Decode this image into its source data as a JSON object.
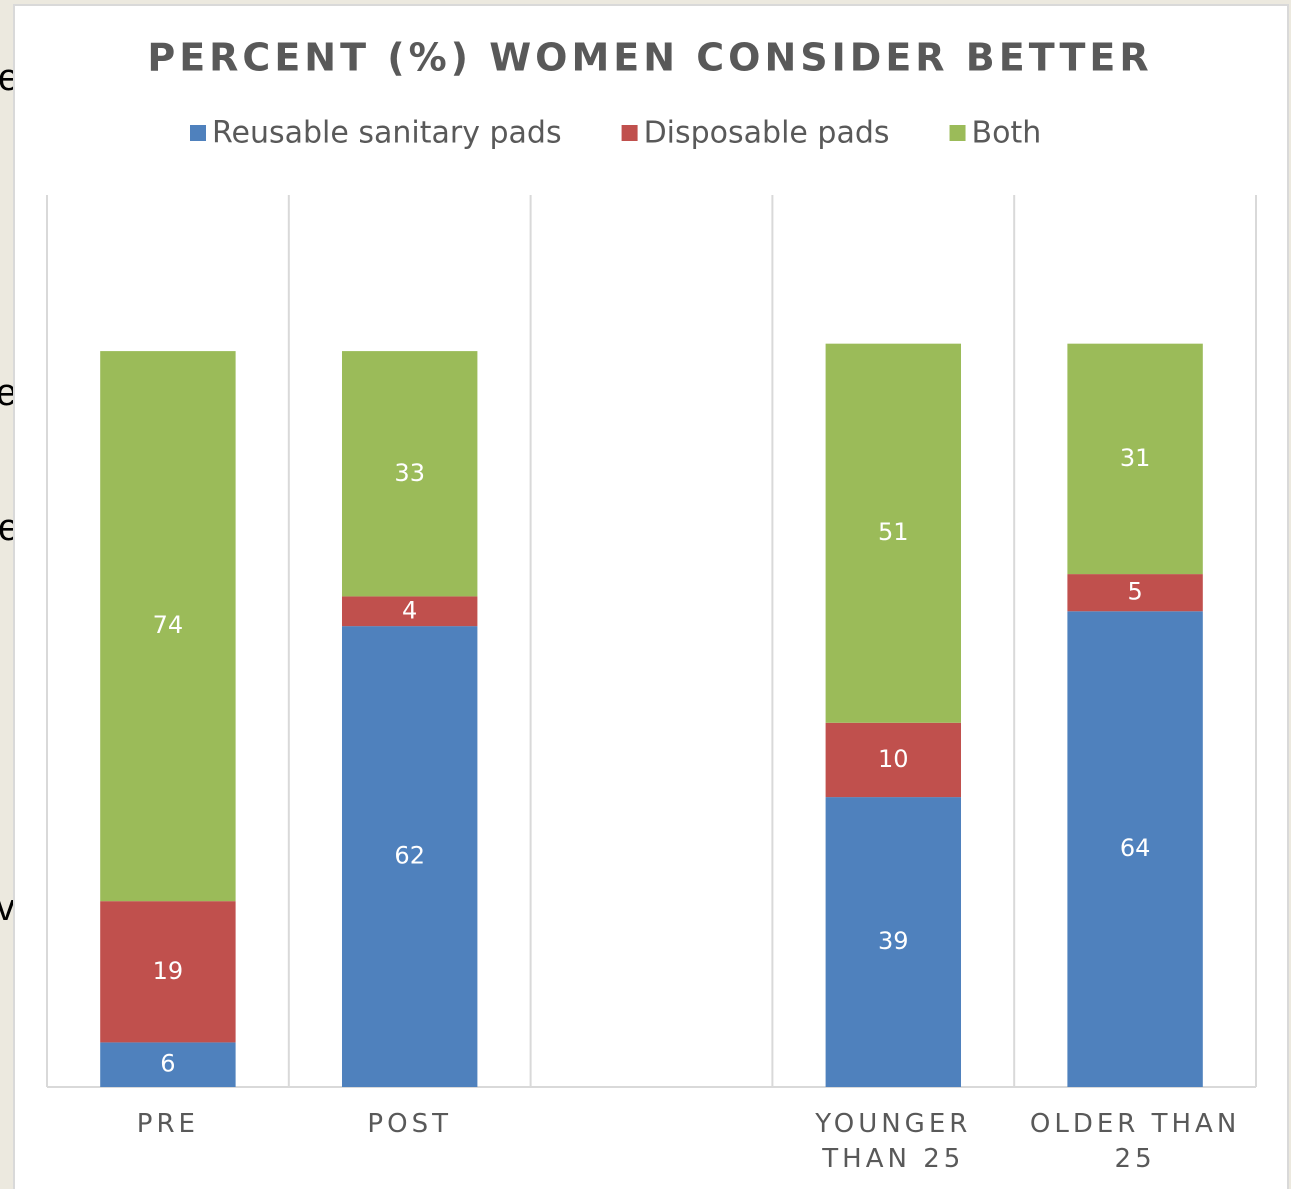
{
  "chart_data": {
    "type": "bar",
    "stacked": true,
    "title": "PERCENT (%) WOMEN CONSIDER BETTER",
    "categories": [
      "PRE",
      "POST",
      null,
      "YOUNGER THAN 25",
      "OLDER THAN 25"
    ],
    "series": [
      {
        "name": "Reusable sanitary pads",
        "color": "#4f81bd",
        "values": [
          6,
          62,
          null,
          39,
          64
        ]
      },
      {
        "name": "Disposable pads",
        "color": "#c0504d",
        "values": [
          19,
          4,
          null,
          10,
          5
        ]
      },
      {
        "name": "Both",
        "color": "#9bbb59",
        "values": [
          74,
          33,
          null,
          51,
          31
        ]
      }
    ],
    "ylim": [
      0,
      120
    ],
    "legend": "top",
    "grid": "vertical"
  },
  "background_fragments": [
    "e",
    "er",
    "e-",
    "v"
  ]
}
